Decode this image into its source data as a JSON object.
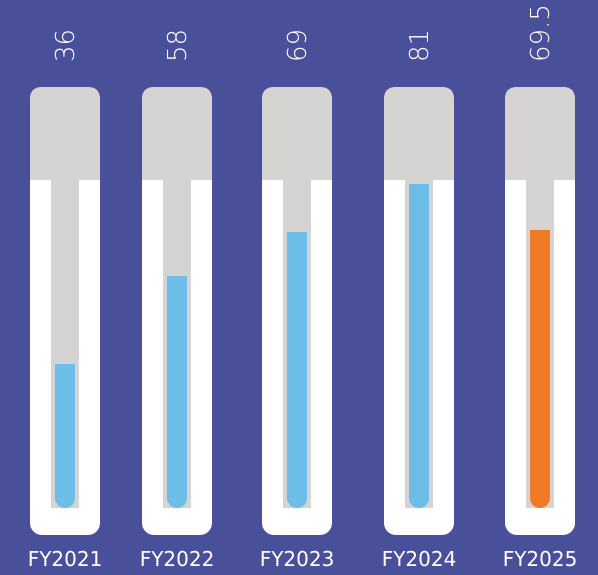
{
  "chart_data": {
    "type": "bar",
    "categories": [
      "FY2021",
      "FY2022",
      "FY2023",
      "FY2024",
      "FY2025"
    ],
    "values": [
      36,
      58,
      69,
      81,
      69.5
    ],
    "value_labels": [
      "36",
      "58",
      "69",
      "81",
      "69.5"
    ],
    "ylim": [
      0,
      100
    ],
    "title": "",
    "xlabel": "",
    "ylabel": "",
    "grid": false,
    "legend": "none",
    "colors": {
      "background": "#4a4f9a",
      "tube_outer": "#ffffff",
      "tube_cap": "#d6d3d3",
      "tube_empty": "#d6d3d3",
      "fill_default": "#6cbde8",
      "fill_highlight": "#f07a25",
      "text": "#ffffff"
    },
    "highlight_index": 4
  }
}
